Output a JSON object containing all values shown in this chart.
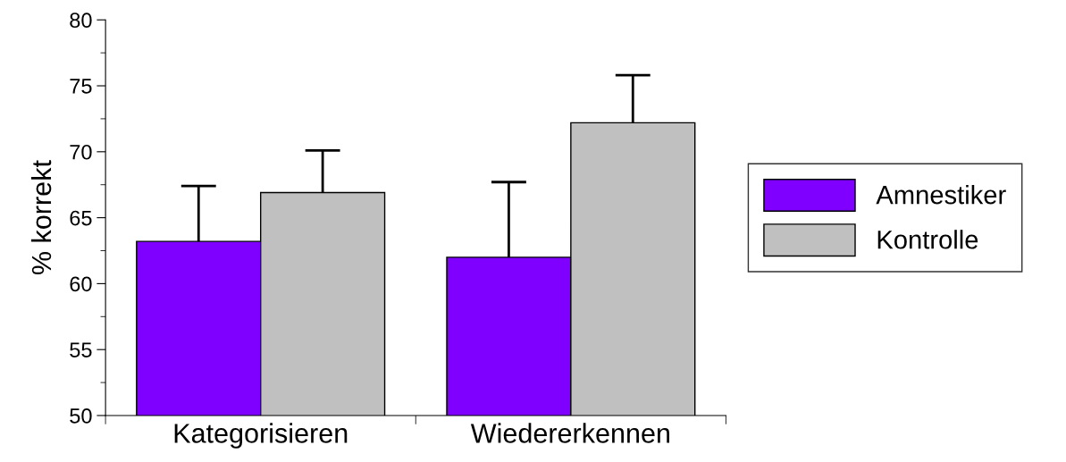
{
  "chart_data": {
    "type": "bar",
    "ylabel": "% korrekt",
    "categories": [
      "Kategorisieren",
      "Wiedererkennen"
    ],
    "series": [
      {
        "name": "Amnestiker",
        "color": "#7f00ff",
        "values": [
          63.2,
          62.0
        ],
        "errors": [
          [
            63.2,
            67.4
          ],
          [
            62.0,
            67.7
          ]
        ]
      },
      {
        "name": "Kontrolle",
        "color": "#c0c0c0",
        "values": [
          66.9,
          72.2
        ],
        "errors": [
          [
            66.9,
            70.1
          ],
          [
            72.2,
            75.8
          ]
        ]
      }
    ],
    "ylim": [
      50,
      80
    ],
    "yticks": [
      50,
      55,
      60,
      65,
      70,
      75,
      80
    ],
    "grid": false,
    "legend": "right"
  }
}
